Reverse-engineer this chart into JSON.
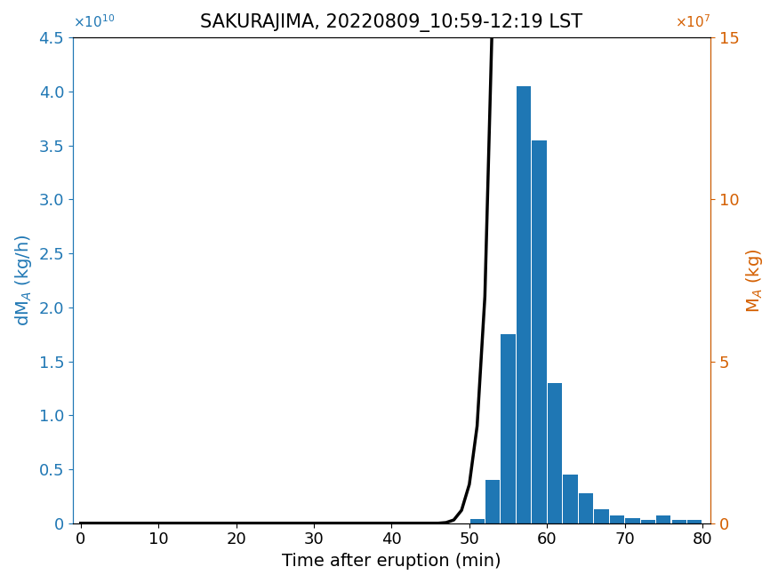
{
  "title": "SAKURAJIMA, 20220809_10:59-12:19 LST",
  "xlabel": "Time after eruption (min)",
  "ylabel_left": "dM_A (kg/h)",
  "ylabel_right": "M_A (kg)",
  "bar_centers": [
    51,
    53,
    55,
    57,
    59,
    61,
    63,
    65,
    67,
    69,
    71,
    73,
    75,
    77,
    79
  ],
  "bar_heights": [
    400000000.0,
    4000000000.0,
    17500000000.0,
    40500000000.0,
    35500000000.0,
    13000000000.0,
    4500000000.0,
    2800000000.0,
    1300000000.0,
    700000000.0,
    500000000.0,
    300000000.0,
    700000000.0,
    300000000.0,
    300000000.0
  ],
  "bar_color": "#1f77b4",
  "bar_width": 1.85,
  "xlim": [
    -1,
    81
  ],
  "ylim_left": [
    0,
    45000000000.0
  ],
  "ylim_right": [
    0,
    15000000.0
  ],
  "line_color": "black",
  "line_width": 2.5,
  "title_fontsize": 15,
  "label_fontsize": 14,
  "tick_fontsize": 13,
  "left_color": "#1f77b4",
  "right_color": "#d45f00",
  "cumulative_times": [
    0,
    46,
    47,
    48,
    49,
    50,
    51,
    52,
    53,
    54,
    55,
    56,
    57,
    58,
    59,
    60,
    61,
    62,
    63,
    64,
    65,
    66,
    67,
    68,
    69,
    70,
    71,
    72,
    73,
    74,
    75,
    76,
    77,
    78,
    79,
    80,
    81
  ],
  "cumulative_values": [
    0,
    0,
    20000.0,
    100000.0,
    400000.0,
    1200000.0,
    3000000.0,
    7000000.0,
    16000000.0,
    32000000.0,
    58000000.0,
    88000000.0,
    114000000.0,
    128000000.0,
    134000000.0,
    138000000.0,
    140000000.0,
    141000000.0,
    142000000.0,
    142500000.0,
    143000000.0,
    143500000.0,
    143800000.0,
    144000000.0,
    144200000.0,
    144400000.0,
    144500000.0,
    144600000.0,
    144700000.0,
    144700000.0,
    144800000.0,
    144800000.0,
    144900000.0,
    144900000.0,
    144900000.0,
    145000000.0,
    145000000.0
  ]
}
